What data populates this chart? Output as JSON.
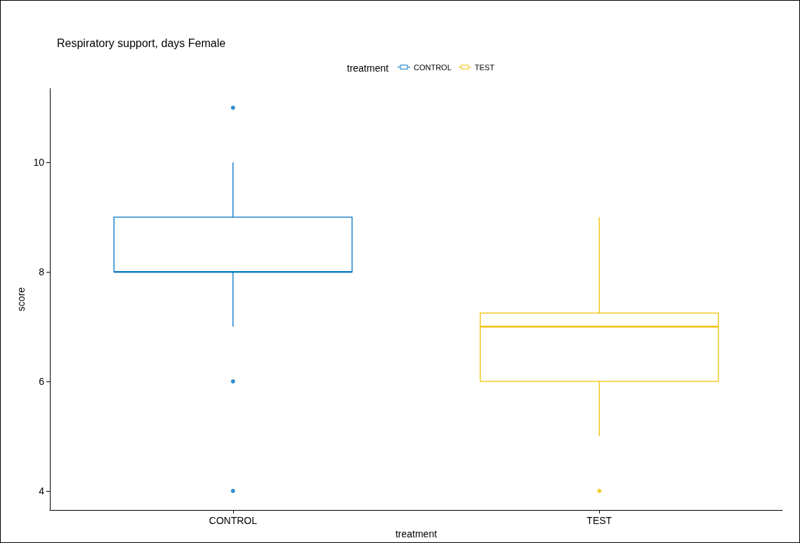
{
  "chart_data": {
    "type": "box",
    "title": "Respiratory support, days Female",
    "xlabel": "treatment",
    "ylabel": "score",
    "legend_title": "treatment",
    "legend": "top",
    "categories": [
      "CONTROL",
      "TEST"
    ],
    "series": [
      {
        "name": "CONTROL",
        "color": "#0073c2",
        "boxes": [
          {
            "low": 7,
            "q1": 8,
            "median": 8,
            "q3": 9,
            "high": 10,
            "outliers": [
              11,
              6,
              4
            ]
          },
          null
        ]
      },
      {
        "name": "TEST",
        "color": "#efc000",
        "boxes": [
          null,
          {
            "low": 5,
            "q1": 6,
            "median": 7,
            "q3": 7.25,
            "high": 9,
            "outliers": [
              4
            ]
          }
        ]
      }
    ],
    "ylim": [
      3.65,
      11.35
    ],
    "yticks": [
      4,
      6,
      8,
      10
    ],
    "grid": false
  }
}
